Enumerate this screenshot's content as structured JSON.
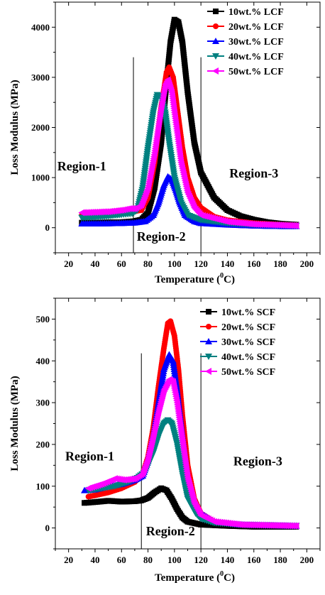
{
  "chart_data": [
    {
      "type": "line",
      "xlabel": "Temperature (",
      "xlabel_sup": "0",
      "xlabel_end": "C)",
      "ylabel": "Loss Modulus (MPa)",
      "xlim": [
        10,
        210
      ],
      "ylim": [
        -500,
        4500
      ],
      "xticks": [
        20,
        40,
        60,
        80,
        100,
        120,
        140,
        160,
        180,
        200
      ],
      "yticks": [
        0,
        1000,
        2000,
        3000,
        4000
      ],
      "legend_position": "top-right",
      "region_lines": [
        69,
        120
      ],
      "regions": [
        {
          "label": "Region-1",
          "x": 30,
          "y": 1140
        },
        {
          "label": "Region-2",
          "x": 90,
          "y": -260
        },
        {
          "label": "Region-3",
          "x": 160,
          "y": 1000
        }
      ],
      "series": [
        {
          "name": "10wt.% LCF",
          "color": "#000000",
          "marker": "square",
          "points": [
            [
              30,
              100
            ],
            [
              40,
              100
            ],
            [
              50,
              105
            ],
            [
              60,
              110
            ],
            [
              70,
              130
            ],
            [
              75,
              160
            ],
            [
              80,
              300
            ],
            [
              85,
              800
            ],
            [
              90,
              1700
            ],
            [
              94,
              2900
            ],
            [
              97,
              3700
            ],
            [
              100,
              4150
            ],
            [
              103,
              4100
            ],
            [
              106,
              3700
            ],
            [
              110,
              2700
            ],
            [
              115,
              1700
            ],
            [
              120,
              1100
            ],
            [
              130,
              600
            ],
            [
              140,
              350
            ],
            [
              150,
              230
            ],
            [
              160,
              160
            ],
            [
              170,
              110
            ],
            [
              180,
              80
            ],
            [
              192,
              60
            ]
          ]
        },
        {
          "name": "20wt.% LCF",
          "color": "#ff0000",
          "marker": "circle",
          "points": [
            [
              30,
              250
            ],
            [
              40,
              260
            ],
            [
              50,
              280
            ],
            [
              60,
              300
            ],
            [
              68,
              320
            ],
            [
              75,
              350
            ],
            [
              80,
              600
            ],
            [
              85,
              1300
            ],
            [
              90,
              2400
            ],
            [
              94,
              3100
            ],
            [
              96,
              3200
            ],
            [
              99,
              3000
            ],
            [
              102,
              2400
            ],
            [
              106,
              1600
            ],
            [
              110,
              1000
            ],
            [
              115,
              600
            ],
            [
              120,
              400
            ],
            [
              130,
              220
            ],
            [
              140,
              150
            ],
            [
              160,
              90
            ],
            [
              180,
              60
            ],
            [
              192,
              50
            ]
          ]
        },
        {
          "name": "30wt.% LCF",
          "color": "#0000ff",
          "marker": "triangle-up",
          "points": [
            [
              30,
              80
            ],
            [
              40,
              80
            ],
            [
              50,
              85
            ],
            [
              60,
              90
            ],
            [
              70,
              100
            ],
            [
              78,
              130
            ],
            [
              84,
              250
            ],
            [
              88,
              500
            ],
            [
              92,
              850
            ],
            [
              95,
              1020
            ],
            [
              98,
              960
            ],
            [
              101,
              750
            ],
            [
              104,
              500
            ],
            [
              108,
              250
            ],
            [
              115,
              130
            ],
            [
              120,
              90
            ],
            [
              140,
              60
            ],
            [
              160,
              40
            ],
            [
              180,
              30
            ],
            [
              192,
              30
            ]
          ]
        },
        {
          "name": "40wt.% LCF",
          "color": "#008080",
          "marker": "triangle-down",
          "points": [
            [
              30,
              200
            ],
            [
              40,
              210
            ],
            [
              50,
              230
            ],
            [
              60,
              260
            ],
            [
              68,
              280
            ],
            [
              72,
              350
            ],
            [
              76,
              800
            ],
            [
              80,
              1600
            ],
            [
              84,
              2300
            ],
            [
              87,
              2650
            ],
            [
              90,
              2620
            ],
            [
              93,
              2300
            ],
            [
              96,
              1700
            ],
            [
              100,
              1000
            ],
            [
              105,
              500
            ],
            [
              110,
              250
            ],
            [
              120,
              150
            ],
            [
              140,
              90
            ],
            [
              160,
              60
            ],
            [
              192,
              40
            ]
          ]
        },
        {
          "name": "50wt.% LCF",
          "color": "#ff00ff",
          "marker": "triangle-left",
          "points": [
            [
              30,
              300
            ],
            [
              40,
              310
            ],
            [
              50,
              320
            ],
            [
              60,
              350
            ],
            [
              66,
              380
            ],
            [
              70,
              380
            ],
            [
              75,
              450
            ],
            [
              80,
              800
            ],
            [
              85,
              1500
            ],
            [
              90,
              2400
            ],
            [
              93,
              2850
            ],
            [
              95,
              2950
            ],
            [
              98,
              2700
            ],
            [
              101,
              2100
            ],
            [
              105,
              1300
            ],
            [
              110,
              700
            ],
            [
              115,
              400
            ],
            [
              120,
              250
            ],
            [
              140,
              120
            ],
            [
              160,
              70
            ],
            [
              192,
              40
            ]
          ]
        }
      ]
    },
    {
      "type": "line",
      "xlabel": "Temperature (",
      "xlabel_sup": "0",
      "xlabel_end": "C)",
      "ylabel": "Loss Modulus (MPa)",
      "xlim": [
        10,
        210
      ],
      "ylim": [
        -50,
        550
      ],
      "xticks": [
        20,
        40,
        60,
        80,
        100,
        120,
        140,
        160,
        180,
        200
      ],
      "yticks": [
        0,
        100,
        200,
        300,
        400,
        500
      ],
      "legend_position": "top-right",
      "region_lines": [
        75,
        120
      ],
      "regions": [
        {
          "label": "Region-1",
          "x": 36,
          "y": 162
        },
        {
          "label": "Region-2",
          "x": 97,
          "y": -18
        },
        {
          "label": "Region-3",
          "x": 163,
          "y": 150
        }
      ],
      "series": [
        {
          "name": "10wt.% SCF",
          "color": "#000000",
          "marker": "square",
          "points": [
            [
              32,
              60
            ],
            [
              40,
              62
            ],
            [
              50,
              65
            ],
            [
              60,
              63
            ],
            [
              70,
              64
            ],
            [
              75,
              66
            ],
            [
              80,
              72
            ],
            [
              85,
              85
            ],
            [
              90,
              95
            ],
            [
              94,
              90
            ],
            [
              98,
              70
            ],
            [
              102,
              45
            ],
            [
              106,
              25
            ],
            [
              110,
              15
            ],
            [
              120,
              8
            ],
            [
              140,
              5
            ],
            [
              160,
              3
            ],
            [
              192,
              3
            ]
          ]
        },
        {
          "name": "20wt.% SCF",
          "color": "#ff0000",
          "marker": "circle",
          "points": [
            [
              35,
              75
            ],
            [
              40,
              78
            ],
            [
              50,
              85
            ],
            [
              60,
              95
            ],
            [
              70,
              110
            ],
            [
              76,
              130
            ],
            [
              80,
              170
            ],
            [
              84,
              240
            ],
            [
              88,
              340
            ],
            [
              92,
              430
            ],
            [
              95,
              490
            ],
            [
              97,
              495
            ],
            [
              100,
              460
            ],
            [
              103,
              380
            ],
            [
              106,
              270
            ],
            [
              110,
              150
            ],
            [
              115,
              70
            ],
            [
              120,
              35
            ],
            [
              130,
              15
            ],
            [
              150,
              8
            ],
            [
              192,
              5
            ]
          ]
        },
        {
          "name": "30wt.% SCF",
          "color": "#0000ff",
          "marker": "triangle-up",
          "points": [
            [
              32,
              90
            ],
            [
              40,
              92
            ],
            [
              50,
              100
            ],
            [
              60,
              105
            ],
            [
              70,
              115
            ],
            [
              76,
              125
            ],
            [
              80,
              160
            ],
            [
              84,
              220
            ],
            [
              88,
              300
            ],
            [
              92,
              380
            ],
            [
              96,
              415
            ],
            [
              99,
              400
            ],
            [
              102,
              330
            ],
            [
              106,
              220
            ],
            [
              110,
              120
            ],
            [
              115,
              60
            ],
            [
              120,
              35
            ],
            [
              130,
              15
            ],
            [
              150,
              8
            ],
            [
              192,
              5
            ]
          ]
        },
        {
          "name": "40wt.% SCF",
          "color": "#008080",
          "marker": "triangle-down",
          "points": [
            [
              35,
              90
            ],
            [
              45,
              95
            ],
            [
              55,
              100
            ],
            [
              65,
              110
            ],
            [
              72,
              120
            ],
            [
              78,
              135
            ],
            [
              84,
              180
            ],
            [
              88,
              220
            ],
            [
              92,
              250
            ],
            [
              95,
              258
            ],
            [
              98,
              250
            ],
            [
              102,
              200
            ],
            [
              106,
              130
            ],
            [
              110,
              70
            ],
            [
              116,
              35
            ],
            [
              120,
              22
            ],
            [
              130,
              12
            ],
            [
              150,
              8
            ],
            [
              192,
              5
            ]
          ]
        },
        {
          "name": "50wt.% SCF",
          "color": "#ff00ff",
          "marker": "triangle-left",
          "points": [
            [
              35,
              95
            ],
            [
              45,
              105
            ],
            [
              55,
              118
            ],
            [
              62,
              115
            ],
            [
              70,
              118
            ],
            [
              76,
              130
            ],
            [
              80,
              165
            ],
            [
              84,
              220
            ],
            [
              88,
              280
            ],
            [
              92,
              330
            ],
            [
              96,
              355
            ],
            [
              99,
              350
            ],
            [
              102,
              300
            ],
            [
              106,
              210
            ],
            [
              110,
              120
            ],
            [
              115,
              60
            ],
            [
              120,
              30
            ],
            [
              130,
              15
            ],
            [
              150,
              8
            ],
            [
              192,
              5
            ]
          ]
        }
      ]
    }
  ]
}
